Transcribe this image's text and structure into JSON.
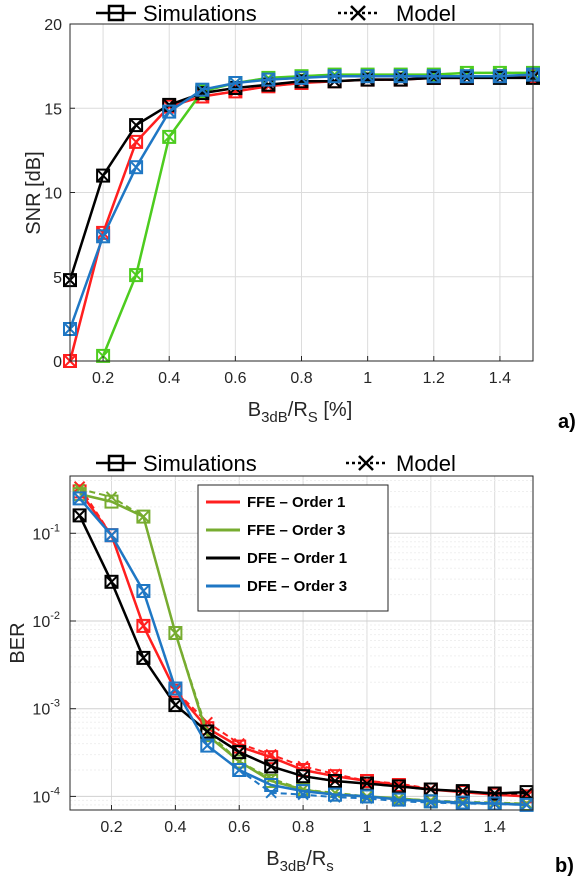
{
  "colors": {
    "ffe1": "#ff1f1f",
    "ffe3_a": "#4dcc1f",
    "ffe3_b": "#77ac30",
    "dfe1": "#000000",
    "dfe3": "#1f77c4"
  },
  "chart_data": [
    {
      "type": "line",
      "panel_label": "a)",
      "ylabel": "SNR [dB]",
      "xlabel": {
        "main": "B",
        "sub1": "3dB",
        "mid": "/R",
        "sub2": "S",
        "tail": " [%]"
      },
      "xlim": [
        0.1,
        1.5
      ],
      "ylim": [
        0,
        20
      ],
      "xticks": [
        0.2,
        0.4,
        0.6,
        0.8,
        1,
        1.2,
        1.4
      ],
      "xtick_labels": [
        "0.2",
        "0.4",
        "0.6",
        "0.8",
        "1",
        "1.2",
        "1.4"
      ],
      "yticks": [
        0,
        5,
        10,
        15,
        20
      ],
      "ytick_labels": [
        "0",
        "5",
        "10",
        "15",
        "20"
      ],
      "grid": true,
      "top_legend": [
        "Simulations",
        "Model"
      ],
      "x": [
        0.1,
        0.2,
        0.3,
        0.4,
        0.5,
        0.6,
        0.7,
        0.8,
        0.9,
        1.0,
        1.1,
        1.2,
        1.3,
        1.4,
        1.5
      ],
      "series": [
        {
          "key": "ffe1",
          "color": "#ff1f1f",
          "sim": [
            0,
            7.6,
            13.0,
            15.1,
            15.7,
            16.0,
            16.3,
            16.5,
            16.6,
            16.7,
            16.7,
            16.8,
            16.8,
            16.9,
            16.9
          ],
          "model": [
            0,
            7.6,
            13.0,
            15.1,
            15.7,
            16.0,
            16.3,
            16.5,
            16.6,
            16.7,
            16.7,
            16.8,
            16.8,
            16.9,
            16.9
          ]
        },
        {
          "key": "ffe3",
          "color": "#4dcc1f",
          "sim": [
            null,
            0.3,
            5.1,
            13.3,
            16.0,
            16.5,
            16.8,
            16.9,
            17.0,
            17.0,
            17.0,
            17.0,
            17.1,
            17.1,
            17.1
          ],
          "model": [
            null,
            0.3,
            5.1,
            13.3,
            16.0,
            16.5,
            16.8,
            16.9,
            17.0,
            17.0,
            17.0,
            17.0,
            17.1,
            17.1,
            17.1
          ]
        },
        {
          "key": "dfe1",
          "color": "#000000",
          "sim": [
            4.8,
            11.0,
            14.0,
            15.2,
            15.9,
            16.2,
            16.4,
            16.6,
            16.6,
            16.7,
            16.7,
            16.8,
            16.8,
            16.8,
            16.8
          ],
          "model": [
            4.8,
            11.0,
            14.0,
            15.2,
            15.9,
            16.2,
            16.4,
            16.6,
            16.6,
            16.7,
            16.7,
            16.8,
            16.8,
            16.8,
            16.8
          ]
        },
        {
          "key": "dfe3",
          "color": "#1f77c4",
          "sim": [
            1.9,
            7.4,
            11.5,
            14.8,
            16.1,
            16.5,
            16.7,
            16.8,
            16.9,
            16.9,
            16.9,
            16.9,
            16.9,
            16.9,
            17.0
          ],
          "model": [
            1.9,
            7.4,
            11.5,
            14.8,
            16.1,
            16.5,
            16.7,
            16.8,
            16.9,
            16.9,
            16.9,
            16.9,
            16.9,
            16.9,
            17.0
          ]
        }
      ]
    },
    {
      "type": "line",
      "panel_label": "b)",
      "ylabel": "BER",
      "xlabel": {
        "main": "B",
        "sub1": "3dB",
        "mid": "/R",
        "sub2": "s",
        "tail": ""
      },
      "yscale": "log",
      "xlim": [
        0.07,
        1.52
      ],
      "ylim": [
        7e-05,
        0.45
      ],
      "xticks": [
        0.2,
        0.4,
        0.6,
        0.8,
        1,
        1.2,
        1.4
      ],
      "xtick_labels": [
        "0.2",
        "0.4",
        "0.6",
        "0.8",
        "1",
        "1.2",
        "1.4"
      ],
      "yticks": [
        0.0001,
        0.001,
        0.01,
        0.1
      ],
      "ytick_labels": [
        {
          "base": "10",
          "exp": "-4"
        },
        {
          "base": "10",
          "exp": "-3"
        },
        {
          "base": "10",
          "exp": "-2"
        },
        {
          "base": "10",
          "exp": "-1"
        }
      ],
      "grid": true,
      "top_legend": [
        "Simulations",
        "Model"
      ],
      "legend": [
        "FFE – Order 1",
        "FFE – Order 3",
        "DFE – Order 1",
        "DFE – Order 3"
      ],
      "legend_position": "top-right",
      "x": [
        0.1,
        0.2,
        0.3,
        0.4,
        0.5,
        0.6,
        0.7,
        0.8,
        0.9,
        1.0,
        1.1,
        1.2,
        1.3,
        1.4,
        1.5
      ],
      "series": [
        {
          "key": "ffe1",
          "name": "FFE – Order 1",
          "color": "#ff1f1f",
          "sim": [
            0.3,
            0.095,
            0.0088,
            0.0016,
            0.0006,
            0.00037,
            0.00028,
            0.0002,
            0.00017,
            0.00015,
            0.000135,
            0.00012,
            0.000112,
            0.000105,
            0.0001
          ],
          "model": [
            0.34,
            0.095,
            0.0088,
            0.0016,
            0.0007,
            0.0004,
            0.0003,
            0.00022,
            0.00018,
            0.00015,
            0.00014,
            0.000122,
            0.000112,
            0.000105,
            0.0001
          ]
        },
        {
          "key": "ffe3",
          "name": "FFE – Order 3",
          "color": "#77ac30",
          "sim": [
            0.28,
            0.23,
            0.155,
            0.0073,
            0.0005,
            0.00025,
            0.00015,
            0.00012,
            0.000105,
            0.0001,
            9.5e-05,
            8.8e-05,
            8.5e-05,
            8.3e-05,
            8.2e-05
          ],
          "model": [
            0.32,
            0.26,
            0.155,
            0.0073,
            0.00055,
            0.00025,
            0.00016,
            0.00012,
            0.00011,
            0.0001,
            9.5e-05,
            9e-05,
            8.7e-05,
            8.5e-05,
            8.3e-05
          ]
        },
        {
          "key": "dfe1",
          "name": "DFE – Order 1",
          "color": "#000000",
          "sim": [
            0.16,
            0.028,
            0.0038,
            0.0011,
            0.00055,
            0.00032,
            0.00022,
            0.00017,
            0.00015,
            0.00014,
            0.00013,
            0.00012,
            0.000115,
            0.000108,
            0.000112
          ],
          "model": [
            0.16,
            0.028,
            0.0038,
            0.0011,
            0.00055,
            0.00032,
            0.00022,
            0.00017,
            0.00015,
            0.00014,
            0.00013,
            0.00012,
            0.000115,
            0.000108,
            0.000108
          ]
        },
        {
          "key": "dfe3",
          "name": "DFE – Order 3",
          "color": "#1f77c4",
          "sim": [
            0.25,
            0.095,
            0.022,
            0.0017,
            0.00038,
            0.0002,
            0.000135,
            0.000115,
            0.000105,
            0.0001,
            9.2e-05,
            8.8e-05,
            8.5e-05,
            8.3e-05,
            8e-05
          ],
          "model": [
            0.25,
            0.095,
            0.022,
            0.0017,
            0.00038,
            0.0002,
            0.00011,
            0.000105,
            9.8e-05,
            9.5e-05,
            8.8e-05,
            8.5e-05,
            8.3e-05,
            8.2e-05,
            8e-05
          ]
        }
      ]
    }
  ]
}
